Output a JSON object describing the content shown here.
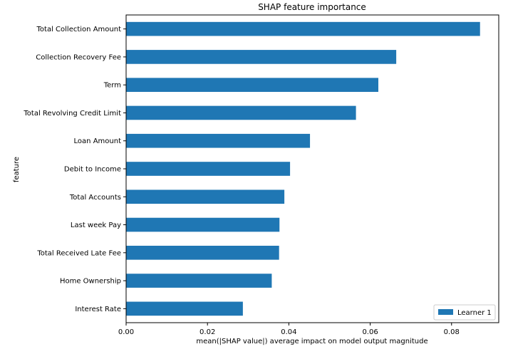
{
  "chart_data": {
    "type": "bar",
    "orientation": "horizontal",
    "title": "SHAP feature importance",
    "xlabel": "mean(|SHAP value|) average impact on model output magnitude",
    "ylabel": "feature",
    "xlim": [
      0.0,
      0.0916
    ],
    "xticks": [
      "0.00",
      "0.02",
      "0.04",
      "0.06",
      "0.08"
    ],
    "xtick_values": [
      0.0,
      0.02,
      0.04,
      0.06,
      0.08
    ],
    "grid": false,
    "legend_position": "bottom-right",
    "bar_color": "#1f77b4",
    "categories": [
      "Total Collection Amount",
      "Collection Recovery Fee",
      "Term",
      "Total Revolving Credit Limit",
      "Loan Amount",
      "Debit to Income",
      "Total Accounts",
      "Last week Pay",
      "Total Received Late Fee",
      "Home Ownership",
      "Interest Rate"
    ],
    "series": [
      {
        "name": "Learner 1",
        "values": [
          0.087,
          0.0664,
          0.062,
          0.0565,
          0.0452,
          0.0403,
          0.0389,
          0.0377,
          0.0376,
          0.0358,
          0.0287
        ]
      }
    ]
  }
}
